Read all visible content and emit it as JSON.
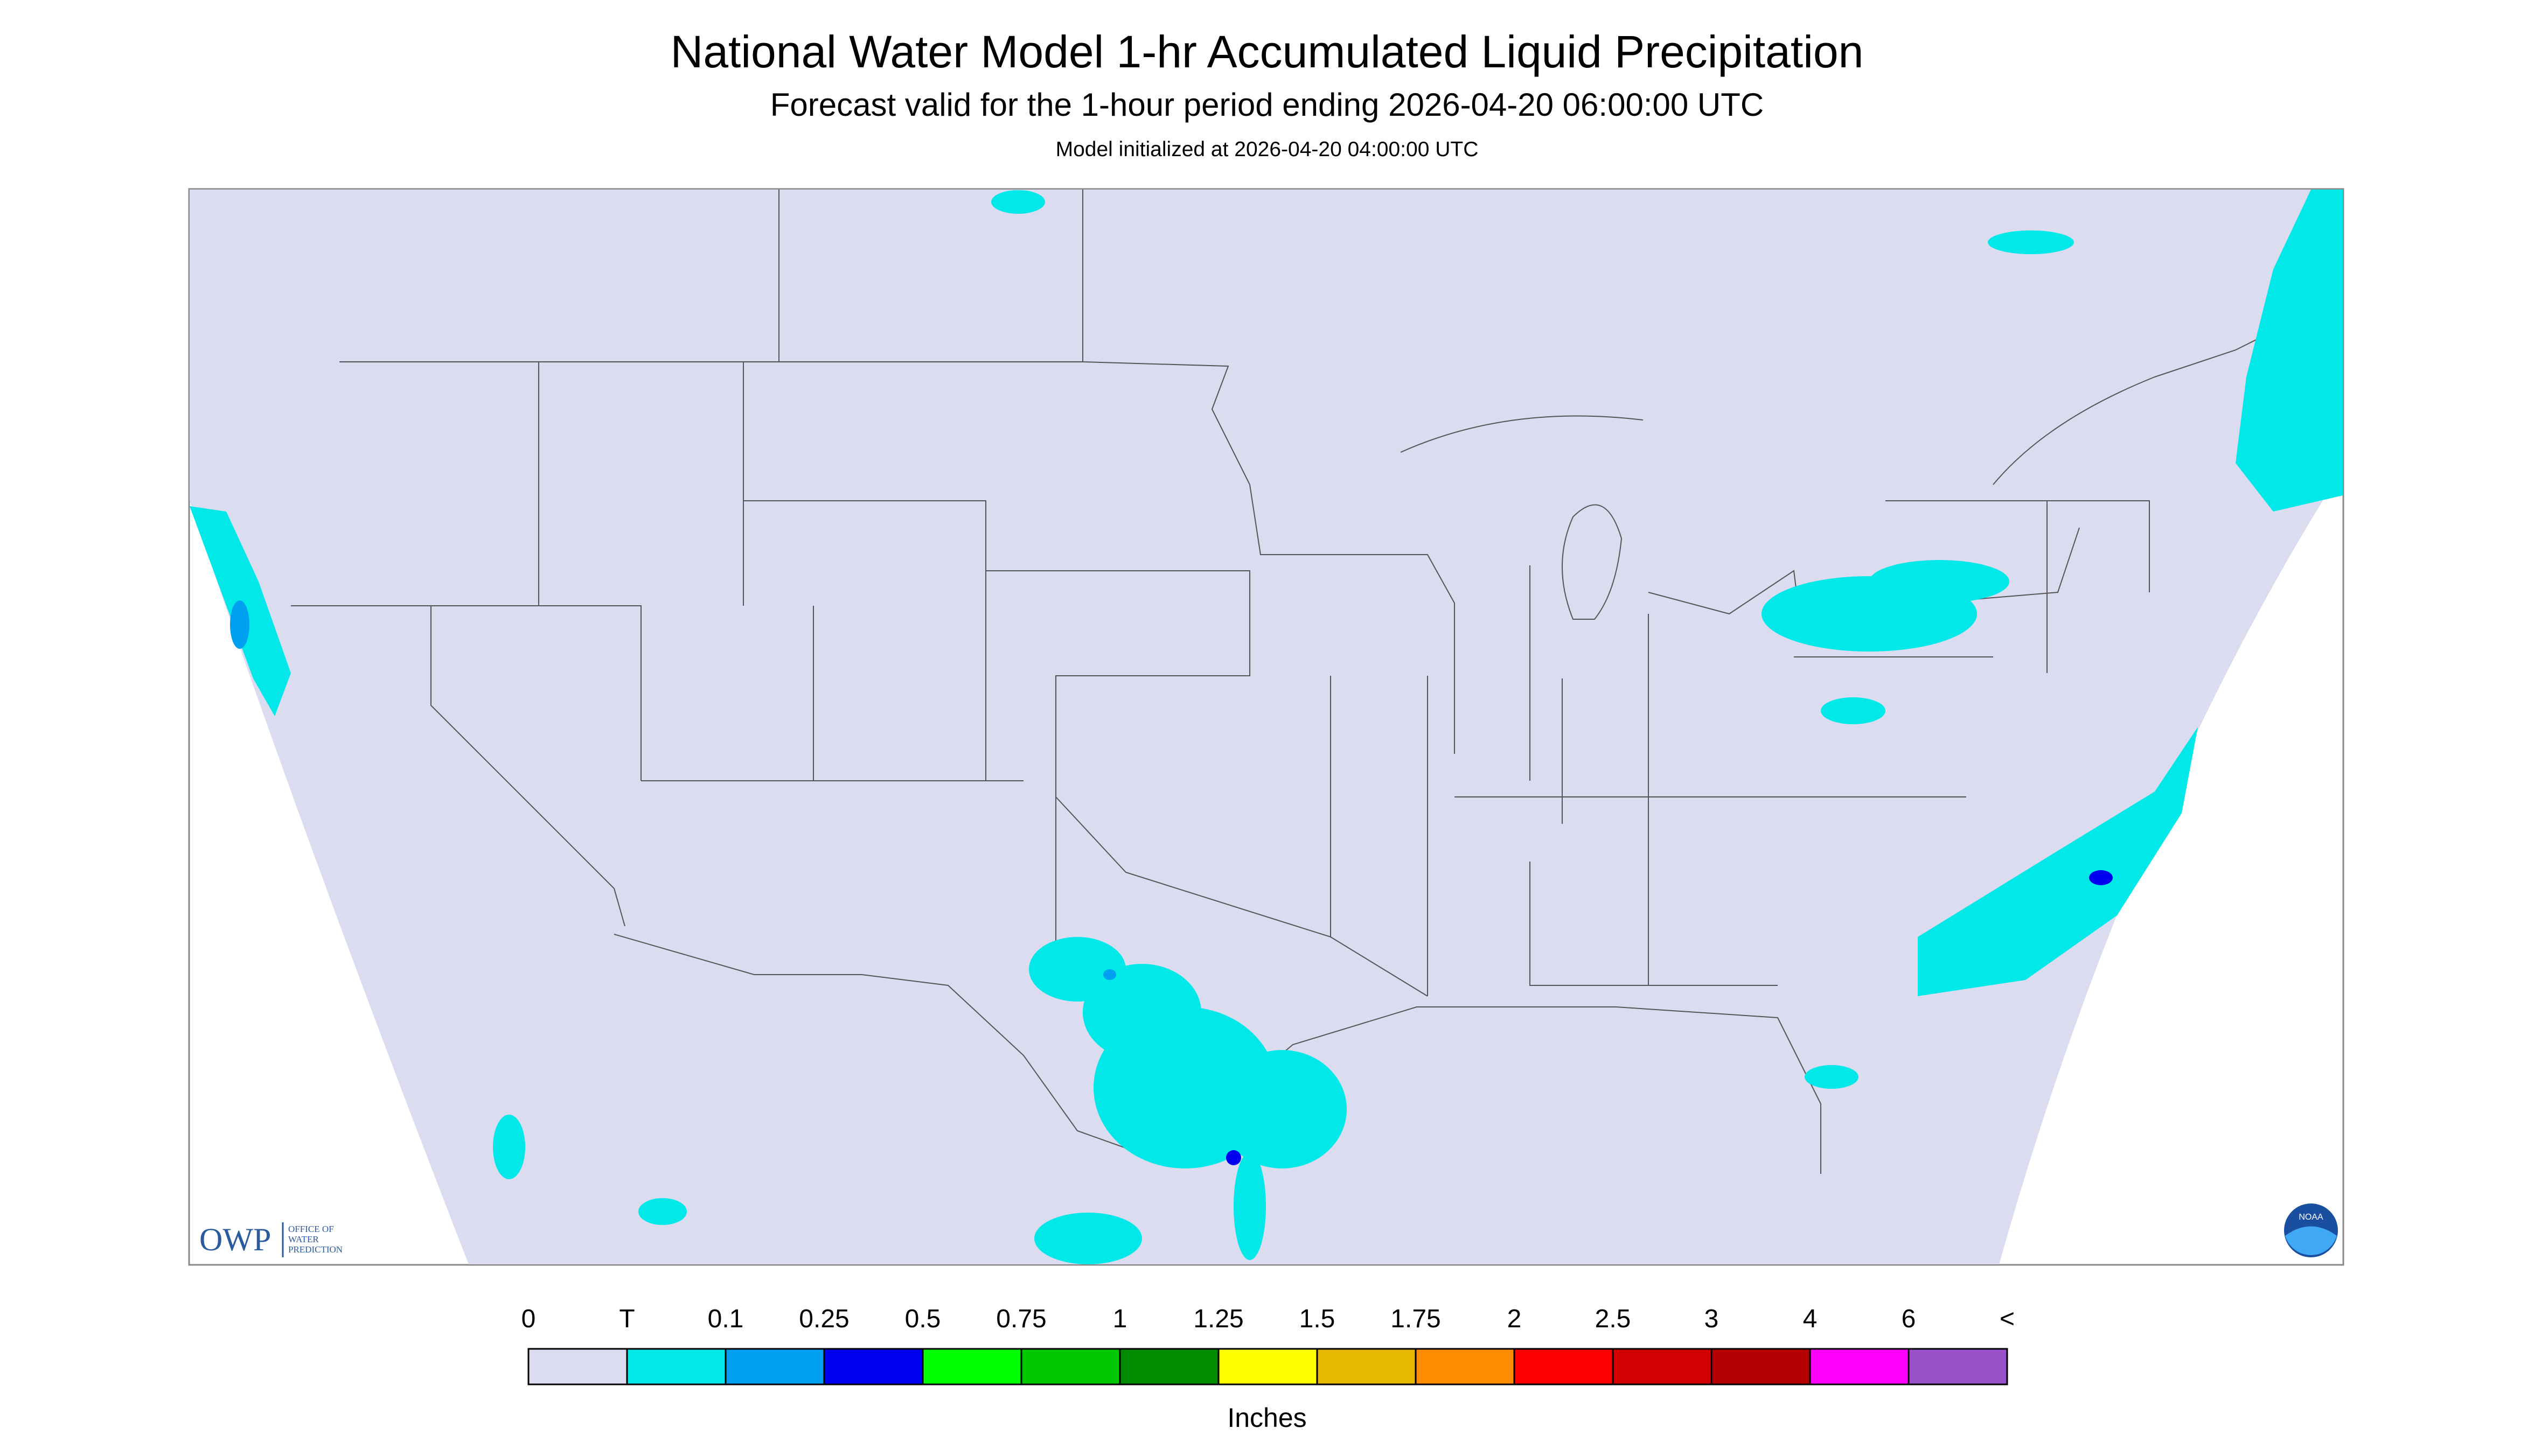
{
  "header": {
    "title": "National Water Model 1-hr Accumulated Liquid Precipitation",
    "subtitle": "Forecast valid for the 1-hour period ending 2026-04-20 06:00:00 UTC",
    "note": "Model initialized at 2026-04-20 04:00:00 UTC"
  },
  "logo": {
    "short": "OWP",
    "long": [
      "OFFICE OF",
      "WATER",
      "PREDICTION"
    ],
    "badge": "NOAA"
  },
  "colorbar": {
    "labels": [
      "0",
      "T",
      "0.1",
      "0.25",
      "0.5",
      "0.75",
      "1",
      "1.25",
      "1.5",
      "1.75",
      "2",
      "2.5",
      "3",
      "4",
      "6",
      "<"
    ],
    "colors": [
      "#dcdcf0",
      "#00e8e8",
      "#00a0f0",
      "#0000f0",
      "#00ff00",
      "#00c800",
      "#008c00",
      "#ffff00",
      "#e6b800",
      "#ff8c00",
      "#ff0000",
      "#d20000",
      "#b40000",
      "#ff00ff",
      "#9a50c8"
    ],
    "unit": "Inches"
  }
}
